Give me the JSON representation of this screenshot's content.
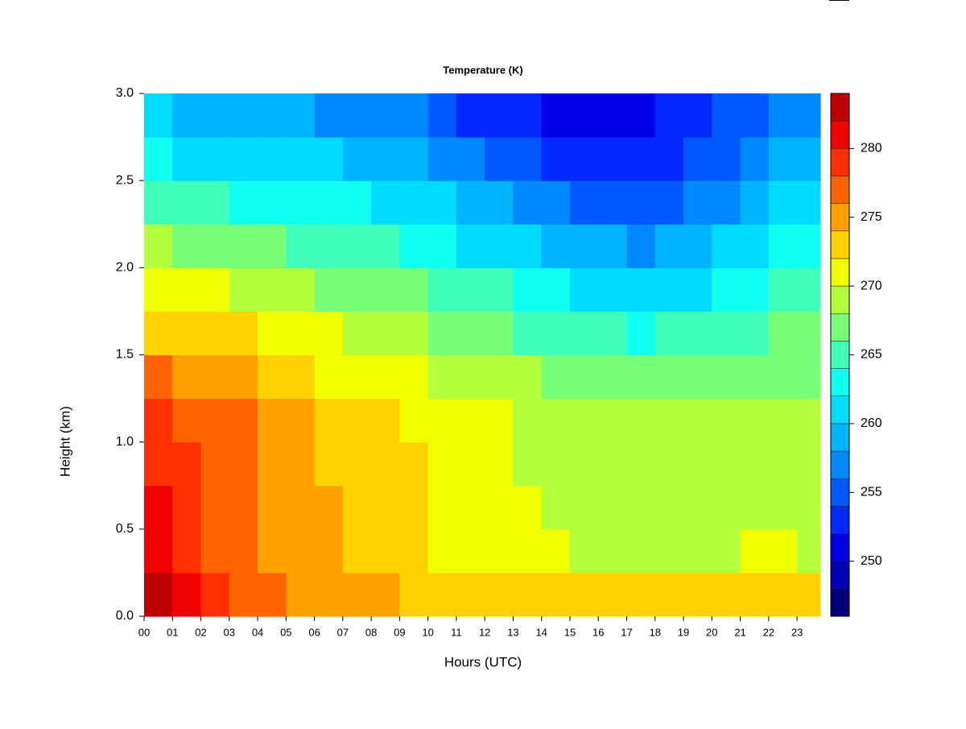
{
  "chart_data": {
    "type": "heatmap",
    "title": "Temperature (K)",
    "x_label": "Hours (UTC)",
    "y_label": "Height (km)",
    "x": [
      0,
      1,
      2,
      3,
      4,
      5,
      6,
      7,
      8,
      9,
      10,
      11,
      12,
      13,
      14,
      15,
      16,
      17,
      18,
      19,
      20,
      21,
      22,
      23
    ],
    "y": [
      0,
      0.25,
      0.5,
      0.75,
      1,
      1.25,
      1.5,
      1.75,
      2,
      2.25,
      2.5,
      2.75
    ],
    "z": [
      [
        282,
        280,
        280,
        279,
        278,
        276,
        273,
        270,
        268,
        265,
        262,
        260
      ],
      [
        280,
        279,
        279,
        278,
        277,
        275,
        273,
        270,
        267,
        264,
        261,
        259
      ],
      [
        278,
        277,
        277,
        277,
        276,
        275,
        272,
        270,
        267,
        264,
        261,
        259
      ],
      [
        277,
        277,
        277,
        276,
        276,
        274,
        272,
        269,
        266,
        263,
        261,
        259
      ],
      [
        276,
        275,
        275,
        275,
        274,
        273,
        271,
        269,
        266,
        263,
        260,
        258
      ],
      [
        275,
        275,
        275,
        274,
        274,
        273,
        271,
        268,
        265,
        262,
        260,
        258
      ],
      [
        274,
        274,
        274,
        273,
        273,
        271,
        270,
        267,
        265,
        262,
        260,
        257
      ],
      [
        274,
        273,
        273,
        273,
        272,
        271,
        269,
        267,
        264,
        262,
        259,
        257
      ],
      [
        274,
        273,
        273,
        272,
        272,
        271,
        269,
        267,
        264,
        261,
        259,
        256
      ],
      [
        273,
        272,
        272,
        272,
        271,
        270,
        268,
        266,
        263,
        261,
        258,
        256
      ],
      [
        273,
        271,
        271,
        271,
        271,
        269,
        267,
        265,
        262,
        260,
        257,
        254
      ],
      [
        273,
        271,
        271,
        271,
        270,
        269,
        267,
        264,
        261,
        259,
        256,
        253
      ],
      [
        273,
        271,
        271,
        271,
        270,
        268,
        266,
        264,
        261,
        258,
        255,
        253
      ],
      [
        272,
        270,
        270,
        269,
        269,
        268,
        265,
        263,
        260,
        257,
        254,
        252
      ],
      [
        272,
        270,
        269,
        269,
        268,
        267,
        265,
        262,
        259,
        256,
        253,
        250
      ],
      [
        272,
        269,
        269,
        269,
        268,
        266,
        264,
        261,
        258,
        255,
        252,
        250
      ],
      [
        272,
        269,
        269,
        269,
        268,
        266,
        264,
        261,
        258,
        255,
        252,
        250
      ],
      [
        273,
        269,
        269,
        269,
        268,
        266,
        263,
        260,
        257,
        254,
        252,
        251
      ],
      [
        272,
        269,
        269,
        269,
        268,
        266,
        264,
        261,
        258,
        255,
        253,
        252
      ],
      [
        272,
        269,
        269,
        269,
        268,
        266,
        264,
        261,
        259,
        256,
        254,
        253
      ],
      [
        272,
        269,
        269,
        269,
        268,
        267,
        265,
        262,
        260,
        257,
        255,
        254
      ],
      [
        272,
        270,
        269,
        269,
        268,
        267,
        265,
        263,
        261,
        259,
        257,
        255
      ],
      [
        272,
        270,
        269,
        269,
        269,
        267,
        266,
        264,
        262,
        260,
        258,
        256
      ],
      [
        272,
        269,
        269,
        269,
        269,
        267,
        266,
        264,
        262,
        260,
        258,
        257
      ]
    ],
    "xlim": [
      0,
      23.82
    ],
    "ylim": [
      0,
      3
    ],
    "xticks": [
      {
        "value": 0,
        "label": "00"
      },
      {
        "value": 1,
        "label": "01"
      },
      {
        "value": 2,
        "label": "02"
      },
      {
        "value": 3,
        "label": "03"
      },
      {
        "value": 4,
        "label": "04"
      },
      {
        "value": 5,
        "label": "05"
      },
      {
        "value": 6,
        "label": "06"
      },
      {
        "value": 7,
        "label": "07"
      },
      {
        "value": 8,
        "label": "08"
      },
      {
        "value": 9,
        "label": "09"
      },
      10,
      11,
      12,
      13,
      14,
      15,
      16,
      17,
      18,
      19,
      20,
      21,
      22,
      23
    ],
    "yticks": [
      {
        "value": 0,
        "label": "0.0"
      },
      0.5,
      {
        "value": 1,
        "label": "1.0"
      },
      1.5,
      {
        "value": 2,
        "label": "2.0"
      },
      2.5,
      {
        "value": 3,
        "label": "3.0"
      }
    ],
    "levels": [
      246,
      248,
      250,
      252,
      254,
      256,
      258,
      260,
      262,
      264,
      266,
      268,
      270,
      272,
      274,
      276,
      278,
      280,
      282,
      284
    ],
    "colors": [
      "#00007f",
      "#0000b4",
      "#0000e6",
      "#0028ff",
      "#0058ff",
      "#0088ff",
      "#00b4ff",
      "#00dcff",
      "#10fff0",
      "#40ffb8",
      "#78ff78",
      "#b4ff3c",
      "#f0ff00",
      "#ffd200",
      "#ffa000",
      "#ff6400",
      "#ff3000",
      "#f00000",
      "#bc0000",
      "#800000"
    ],
    "zlim": [
      246,
      284
    ],
    "zticks": [
      250,
      255,
      260,
      265,
      270,
      275,
      280
    ]
  }
}
